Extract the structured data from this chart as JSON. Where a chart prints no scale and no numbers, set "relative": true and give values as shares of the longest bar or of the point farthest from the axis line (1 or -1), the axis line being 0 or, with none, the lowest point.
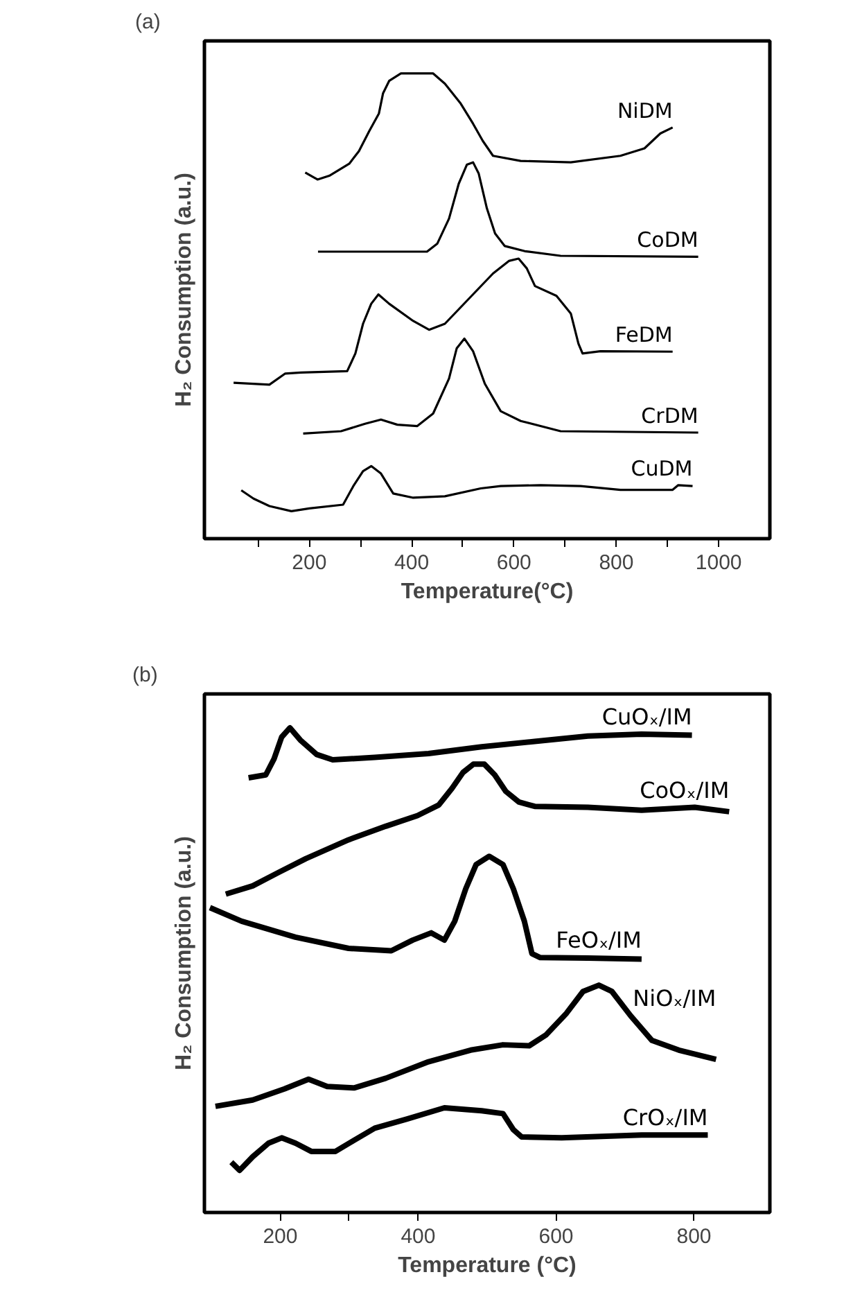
{
  "chart_data": [
    {
      "type": "line",
      "annotations": [
        "(a)"
      ],
      "xlabel": "Temperature(°C)",
      "ylabel": "H₂ Consumption (a.u.)",
      "relative": true,
      "xlim": [
        -5,
        1100
      ],
      "xticks": [
        {
          "value": 100,
          "label": null
        },
        200,
        {
          "value": 300,
          "label": null
        },
        400,
        {
          "value": 500,
          "label": null
        },
        600,
        {
          "value": 700,
          "label": null
        },
        800,
        {
          "value": 900,
          "label": null
        },
        1000
      ],
      "series": [
        {
          "name": "NiDM",
          "color": "#000000",
          "x": [
            192,
            216,
            239,
            278,
            297,
            317,
            336,
            344,
            356,
            379,
            442,
            465,
            496,
            520,
            539,
            559,
            613,
            711,
            808,
            855,
            886,
            910
          ],
          "values": [
            0.787,
            0.772,
            0.78,
            0.806,
            0.833,
            0.876,
            0.914,
            0.957,
            0.984,
            1.0,
            1.0,
            0.978,
            0.935,
            0.892,
            0.855,
            0.823,
            0.812,
            0.809,
            0.823,
            0.839,
            0.871,
            0.884
          ]
        },
        {
          "name": "CoDM",
          "color": "#000000",
          "x": [
            217,
            430,
            450,
            473,
            492,
            508,
            520,
            531,
            547,
            563,
            582,
            621,
            691,
            960
          ],
          "values": [
            0.617,
            0.617,
            0.634,
            0.688,
            0.763,
            0.804,
            0.809,
            0.785,
            0.71,
            0.656,
            0.629,
            0.618,
            0.608,
            0.606
          ]
        },
        {
          "name": "FeDM",
          "color": "#000000",
          "x": [
            52,
            122,
            153,
            184,
            274,
            290,
            305,
            321,
            335,
            356,
            403,
            434,
            465,
            512,
            559,
            590,
            609,
            625,
            641,
            683,
            711,
            726,
            734,
            769,
            910
          ],
          "values": [
            0.335,
            0.331,
            0.355,
            0.357,
            0.36,
            0.398,
            0.462,
            0.505,
            0.525,
            0.505,
            0.468,
            0.449,
            0.462,
            0.516,
            0.57,
            0.597,
            0.602,
            0.581,
            0.543,
            0.522,
            0.484,
            0.419,
            0.398,
            0.403,
            0.402
          ]
        },
        {
          "name": "CrDM",
          "color": "#000000",
          "x": [
            188,
            262,
            309,
            340,
            372,
            411,
            442,
            473,
            488,
            503,
            520,
            543,
            574,
            613,
            691,
            960
          ],
          "values": [
            0.226,
            0.231,
            0.247,
            0.256,
            0.245,
            0.242,
            0.269,
            0.344,
            0.409,
            0.43,
            0.403,
            0.333,
            0.274,
            0.253,
            0.231,
            0.228
          ]
        },
        {
          "name": "CuDM",
          "color": "#000000",
          "x": [
            67,
            91,
            122,
            165,
            200,
            266,
            286,
            305,
            321,
            340,
            364,
            403,
            465,
            535,
            574,
            652,
            730,
            808,
            910,
            921,
            949
          ],
          "values": [
            0.104,
            0.086,
            0.07,
            0.059,
            0.065,
            0.073,
            0.113,
            0.145,
            0.156,
            0.14,
            0.097,
            0.088,
            0.091,
            0.108,
            0.113,
            0.115,
            0.113,
            0.105,
            0.105,
            0.115,
            0.113
          ]
        }
      ]
    },
    {
      "type": "line",
      "annotations": [
        "(b)"
      ],
      "xlabel": "Temperature (°C)",
      "ylabel": "H₂ Consumption (a.u.)",
      "relative": true,
      "xlim": [
        90,
        910
      ],
      "xticks": [
        200,
        {
          "value": 300,
          "label": null
        },
        400,
        600,
        800
      ],
      "series": [
        {
          "name": "CuOₓ/IM",
          "color": "#000000",
          "x": [
            154,
            179,
            191,
            202,
            214,
            229,
            253,
            276,
            337,
            415,
            492,
            569,
            646,
            724,
            797
          ],
          "values": [
            0.897,
            0.903,
            0.936,
            0.981,
            1.0,
            0.975,
            0.945,
            0.934,
            0.939,
            0.947,
            0.961,
            0.972,
            0.983,
            0.987,
            0.985
          ]
        },
        {
          "name": "CoOₓ/IM",
          "color": "#000000",
          "x": [
            121,
            160,
            198,
            237,
            299,
            353,
            399,
            430,
            449,
            465,
            480,
            496,
            511,
            527,
            546,
            569,
            646,
            724,
            801,
            851
          ],
          "values": [
            0.657,
            0.674,
            0.702,
            0.73,
            0.769,
            0.797,
            0.819,
            0.841,
            0.875,
            0.908,
            0.925,
            0.925,
            0.903,
            0.869,
            0.847,
            0.838,
            0.836,
            0.83,
            0.836,
            0.827
          ]
        },
        {
          "name": "FeOₓ/IM",
          "color": "#000000",
          "x": [
            98,
            144,
            222,
            299,
            361,
            392,
            419,
            438,
            453,
            469,
            484,
            503,
            523,
            538,
            554,
            565,
            577,
            646,
            724
          ],
          "values": [
            0.629,
            0.601,
            0.568,
            0.545,
            0.54,
            0.562,
            0.577,
            0.562,
            0.601,
            0.668,
            0.718,
            0.735,
            0.718,
            0.668,
            0.601,
            0.534,
            0.526,
            0.525,
            0.523
          ]
        },
        {
          "name": "NiOₓ/IM",
          "color": "#000000",
          "x": [
            106,
            160,
            206,
            241,
            268,
            307,
            353,
            415,
            476,
            523,
            561,
            585,
            615,
            639,
            662,
            681,
            708,
            739,
            778,
            832
          ],
          "values": [
            0.219,
            0.232,
            0.255,
            0.275,
            0.26,
            0.257,
            0.277,
            0.311,
            0.335,
            0.346,
            0.344,
            0.366,
            0.411,
            0.456,
            0.469,
            0.456,
            0.406,
            0.355,
            0.335,
            0.316
          ]
        },
        {
          "name": "CrOₓ/IM",
          "color": "#000000",
          "x": [
            129,
            141,
            160,
            183,
            202,
            222,
            245,
            280,
            307,
            337,
            384,
            438,
            492,
            523,
            538,
            550,
            608,
            724,
            820
          ],
          "values": [
            0.104,
            0.087,
            0.115,
            0.143,
            0.154,
            0.143,
            0.126,
            0.126,
            0.149,
            0.174,
            0.193,
            0.216,
            0.21,
            0.204,
            0.171,
            0.156,
            0.154,
            0.16,
            0.16
          ]
        }
      ]
    }
  ]
}
